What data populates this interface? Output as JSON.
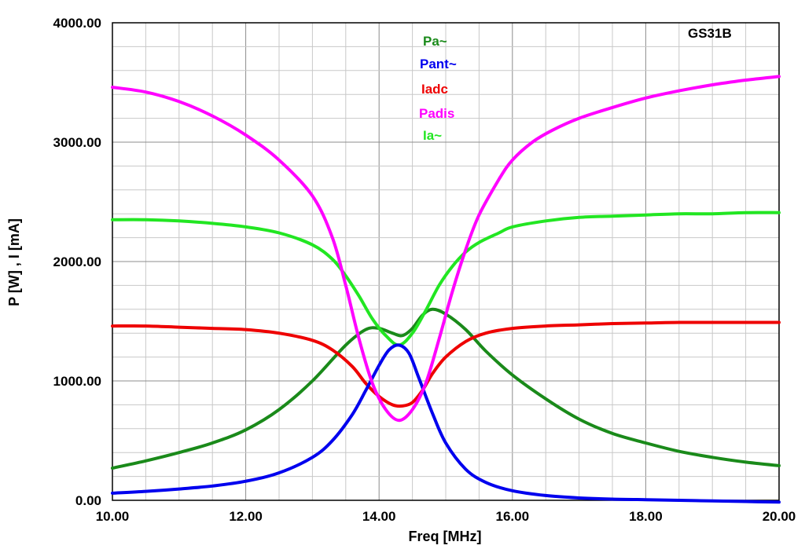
{
  "chart_data": {
    "type": "line",
    "title": "GS31B",
    "xlabel": "Freq [MHz]",
    "ylabel": "P [W] , I [mA]",
    "xlim": [
      10,
      20
    ],
    "ylim": [
      0,
      4000
    ],
    "grid": true,
    "legend_position": "top-center",
    "x_ticks": [
      "10.00",
      "12.00",
      "14.00",
      "16.00",
      "18.00",
      "20.00"
    ],
    "y_ticks": [
      "0.00",
      "1000.00",
      "2000.00",
      "3000.00",
      "4000.00"
    ],
    "series": [
      {
        "name": "Pa~",
        "color": "#1a8a1a",
        "x": [
          10,
          10.5,
          11,
          11.5,
          12,
          12.5,
          13,
          13.5,
          13.8,
          14,
          14.2,
          14.35,
          14.5,
          14.65,
          14.8,
          15,
          15.3,
          15.6,
          16,
          16.5,
          17,
          17.5,
          18,
          18.5,
          19,
          19.5,
          20
        ],
        "y": [
          270,
          330,
          400,
          480,
          590,
          760,
          1000,
          1300,
          1430,
          1440,
          1400,
          1380,
          1440,
          1550,
          1600,
          1560,
          1430,
          1250,
          1050,
          850,
          680,
          560,
          480,
          410,
          360,
          320,
          290
        ]
      },
      {
        "name": "Pant~",
        "color": "#0000ee",
        "x": [
          10,
          10.5,
          11,
          11.5,
          12,
          12.5,
          13,
          13.3,
          13.6,
          13.8,
          14,
          14.15,
          14.3,
          14.45,
          14.6,
          14.8,
          15,
          15.3,
          15.6,
          16,
          16.5,
          17,
          17.5,
          18,
          18.5,
          19,
          19.5,
          20
        ],
        "y": [
          60,
          75,
          95,
          120,
          160,
          230,
          360,
          500,
          720,
          920,
          1130,
          1260,
          1300,
          1230,
          1020,
          730,
          480,
          260,
          150,
          80,
          40,
          20,
          10,
          5,
          0,
          -5,
          -10,
          -15
        ]
      },
      {
        "name": "Iadc",
        "color": "#ee0000",
        "x": [
          10,
          10.5,
          11,
          11.5,
          12,
          12.5,
          13,
          13.3,
          13.6,
          13.8,
          14,
          14.2,
          14.35,
          14.5,
          14.65,
          14.8,
          15,
          15.3,
          15.6,
          16,
          16.5,
          17,
          17.5,
          18,
          18.5,
          19,
          19.5,
          20
        ],
        "y": [
          1460,
          1460,
          1450,
          1440,
          1430,
          1400,
          1340,
          1260,
          1120,
          980,
          870,
          800,
          790,
          820,
          920,
          1060,
          1200,
          1330,
          1400,
          1440,
          1460,
          1470,
          1480,
          1485,
          1490,
          1490,
          1490,
          1490
        ]
      },
      {
        "name": "Padis",
        "color": "#ff00ff",
        "x": [
          10,
          10.5,
          11,
          11.5,
          12,
          12.5,
          13,
          13.3,
          13.5,
          13.7,
          13.9,
          14.1,
          14.3,
          14.5,
          14.7,
          14.9,
          15.1,
          15.3,
          15.5,
          15.8,
          16,
          16.3,
          16.6,
          17,
          17.5,
          18,
          18.5,
          19,
          19.5,
          20
        ],
        "y": [
          3460,
          3420,
          3340,
          3220,
          3060,
          2850,
          2550,
          2200,
          1800,
          1350,
          980,
          760,
          670,
          760,
          980,
          1350,
          1750,
          2100,
          2390,
          2690,
          2850,
          3000,
          3100,
          3200,
          3290,
          3370,
          3430,
          3480,
          3520,
          3550
        ]
      },
      {
        "name": "Ia~",
        "color": "#22e622",
        "x": [
          10,
          10.5,
          11,
          11.5,
          12,
          12.5,
          13,
          13.3,
          13.5,
          13.7,
          13.9,
          14.1,
          14.3,
          14.5,
          14.7,
          14.9,
          15.1,
          15.3,
          15.5,
          15.8,
          16,
          16.5,
          17,
          17.5,
          18,
          18.5,
          19,
          19.5,
          20
        ],
        "y": [
          2350,
          2350,
          2340,
          2320,
          2290,
          2240,
          2140,
          2020,
          1880,
          1710,
          1520,
          1380,
          1300,
          1400,
          1590,
          1800,
          1960,
          2080,
          2160,
          2240,
          2290,
          2340,
          2370,
          2380,
          2390,
          2400,
          2400,
          2410,
          2410
        ]
      }
    ]
  }
}
